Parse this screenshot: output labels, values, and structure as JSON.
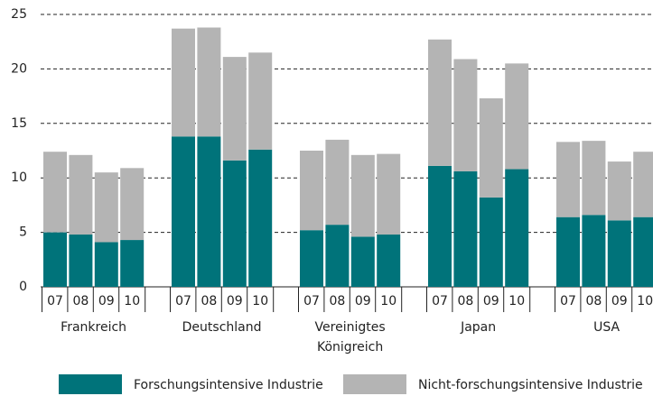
{
  "chart_data": {
    "type": "stacked-bar",
    "categories": [
      "07",
      "08",
      "09",
      "10",
      "07",
      "08",
      "09",
      "10",
      "07",
      "08",
      "09",
      "10",
      "07",
      "08",
      "09",
      "10",
      "07",
      "08",
      "09",
      "10"
    ],
    "groups": [
      "Frankreich",
      "Deutschland",
      "Vereinigtes Königreich",
      "Japan",
      "USA"
    ],
    "series": [
      {
        "name": "Forschungsintensive Industrie",
        "color": "#00737a",
        "values": [
          5.0,
          4.8,
          4.1,
          4.3,
          13.8,
          13.8,
          11.6,
          12.6,
          5.2,
          5.7,
          4.6,
          4.8,
          11.1,
          10.6,
          8.2,
          10.8,
          6.4,
          6.6,
          6.1,
          6.4
        ]
      },
      {
        "name": "Nicht-forschungsintensive Industrie",
        "color": "#b4b4b4",
        "values": [
          7.4,
          7.3,
          6.4,
          6.6,
          9.9,
          10.0,
          9.5,
          8.9,
          7.3,
          7.8,
          7.5,
          7.4,
          11.6,
          10.3,
          9.1,
          9.7,
          6.9,
          6.8,
          5.4,
          6.0
        ]
      }
    ],
    "ylim": [
      0,
      25
    ],
    "yticks": [
      0,
      5,
      10,
      15,
      20,
      25
    ],
    "grid": true
  }
}
